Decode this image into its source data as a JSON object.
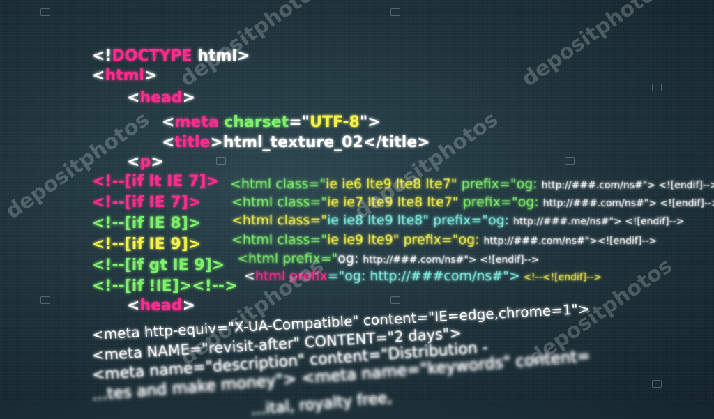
{
  "code": {
    "l1": {
      "a": "<!",
      "b": "DOCTYPE",
      "c": " html>"
    },
    "l2": {
      "a": "<",
      "b": "html",
      "c": ">"
    },
    "l3": {
      "a": "<",
      "b": "head",
      "c": ">"
    },
    "l4": {
      "a": "<",
      "b": "meta",
      "c": " charset",
      "d": "=\"",
      "e": "UTF-8",
      "f": "\">"
    },
    "l5": {
      "a": "<",
      "b": "title",
      "c": ">html_texture_02</title>"
    },
    "l6": {
      "a": "<",
      "b": "p",
      "c": ">"
    },
    "l7": {
      "a": "<!--[if lt IE 7]>",
      "b": "<html class=\"",
      "c": "ie ie6 lte9 lte8 lte7\"",
      "d": " prefix=\"og: ",
      "e": "http://###.com/ns#\"> <![endif]-->"
    },
    "l8": {
      "a": "<!--[if IE 7]>",
      "b": "<html class=\"",
      "c": "ie ie7 lte9 lte8 lte7\"",
      "d": " prefix=\"og: ",
      "e": "http://###.com/ns#\"> <![endif]-->"
    },
    "l9": {
      "a": "<!--[if IE 8]>",
      "b": "<html class=\"",
      "c": "ie ie8 lte9 lte8\"",
      "d": " prefix=\"og: ",
      "e": "http://###.me/ns#\"> <![endif]-->"
    },
    "l10": {
      "a": "<!--[if IE 9]>",
      "b": "<html class=\"",
      "c": "ie ie9 lte9\"",
      "d": " prefix=\"og: ",
      "e": "http://###.com/ns#\"><![endif]-->"
    },
    "l11": {
      "a": "<!--[if gt IE 9]>",
      "b": "<html prefix=\"",
      "c": "og: ",
      "d": "http://###.com/ns#\"> <![endif]-->"
    },
    "l12": {
      "a": "<!--[if !IE]><!-->",
      "b": "<",
      "c": "html prefix",
      "d": "=\"og: ",
      "e": "http://###com/ns#\">",
      "f": " <!--<![endif]-->"
    },
    "l13": {
      "a": "<",
      "b": "head",
      "c": ">"
    },
    "l14": {
      "a": "<meta http-equiv=\"X-UA-Compatible\" content=\"IE=edge,chrome=1\">"
    },
    "l15": {
      "a": "<meta NAME=\"revisit-after\" CONTENT=\"2 days\">"
    },
    "l16": {
      "a": "<meta name=\"description\" content=\"Distribution -"
    },
    "l17": {
      "a": "...tes and make money\"> <meta name=\"keywords\" content="
    },
    "l18": {
      "a": "...ital, royalty free,"
    }
  },
  "watermark": {
    "text": "depositphotos"
  },
  "colors": {
    "background": "#1d3038",
    "pink": "#ff2d8e",
    "green": "#7ff06a",
    "yellow": "#f5f24a",
    "cyan": "#7ff3e4",
    "white": "#ffffff"
  }
}
